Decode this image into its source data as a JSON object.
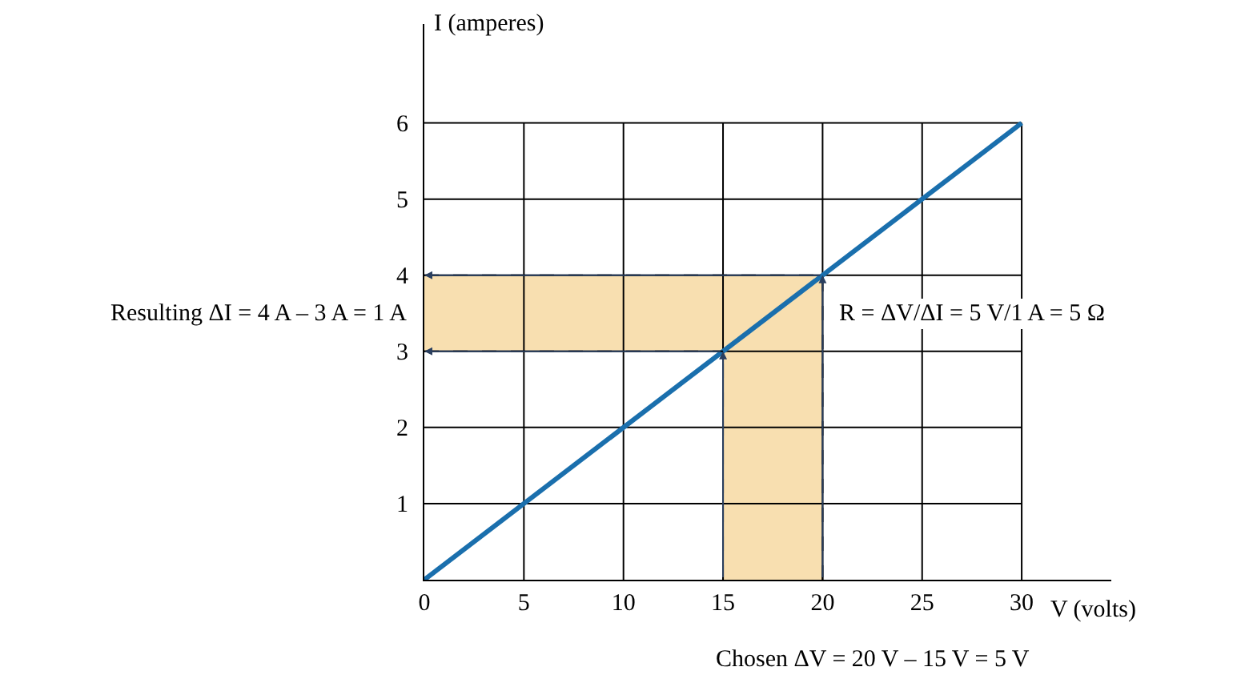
{
  "chart_data": {
    "type": "line",
    "xlabel": "V (volts)",
    "ylabel": "I (amperes)",
    "x": [
      0,
      30
    ],
    "series": [
      {
        "color": "#1a6fad",
        "values": [
          0,
          6
        ]
      }
    ],
    "xlim": [
      0,
      34.5
    ],
    "ylim": [
      0,
      7.3
    ],
    "xticks": [
      0,
      5,
      10,
      15,
      20,
      25,
      30
    ],
    "yticks": [
      1,
      2,
      3,
      4,
      5,
      6
    ],
    "grid": true,
    "marker": "none",
    "line_style": "solid",
    "bands": [
      {
        "axis": "x",
        "from": 15,
        "to": 20,
        "color": "#f8dfb0"
      },
      {
        "axis": "y",
        "from": 3,
        "to": 4,
        "color": "#f8dfb0"
      }
    ],
    "ref_lines": [
      {
        "axis": "x",
        "value": 15,
        "line_style": "dashed"
      },
      {
        "axis": "x",
        "value": 20,
        "line_style": "dashed"
      },
      {
        "axis": "y",
        "value": 3,
        "line_style": "dashed"
      },
      {
        "axis": "y",
        "value": 4,
        "line_style": "dashed"
      }
    ],
    "annotations": [
      "Resulting ΔI = 4 A – 3 A = 1 A",
      "R = ΔV/ΔI = 5 V/1 A = 5 Ω",
      "Chosen ΔV = 20 V – 15 V = 5 V"
    ]
  }
}
